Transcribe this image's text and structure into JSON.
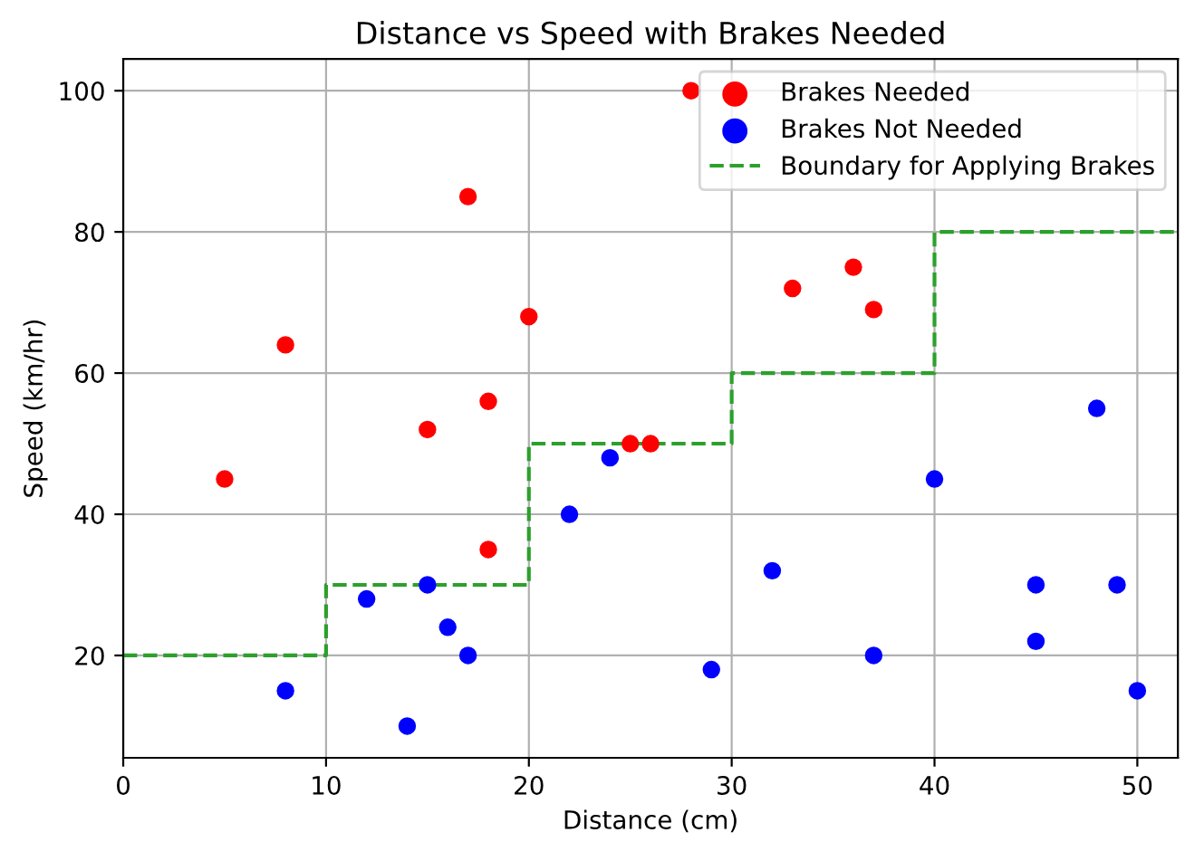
{
  "chart_data": {
    "type": "scatter",
    "title": "Distance vs Speed with Brakes Needed",
    "xlabel": "Distance (cm)",
    "ylabel": "Speed (km/hr)",
    "series": [
      {
        "name": "Brakes Needed",
        "color": "#ff0000",
        "x": [
          5,
          8,
          15,
          17,
          18,
          18,
          20,
          25,
          26,
          28,
          33,
          36,
          37
        ],
        "values": [
          45,
          64,
          52,
          85,
          56,
          35,
          68,
          50,
          50,
          100,
          72,
          75,
          69
        ]
      },
      {
        "name": "Brakes Not Needed",
        "color": "#0000ff",
        "x": [
          8,
          12,
          14,
          15,
          16,
          17,
          22,
          24,
          29,
          32,
          37,
          40,
          45,
          45,
          48,
          49,
          50
        ],
        "values": [
          15,
          28,
          10,
          30,
          24,
          20,
          40,
          48,
          18,
          32,
          20,
          45,
          30,
          22,
          55,
          30,
          15
        ]
      },
      {
        "name": "Boundary for Applying Brakes",
        "type": "step",
        "color": "#2ca02c",
        "line_style": "dashed",
        "marker": "none",
        "x": [
          0,
          10,
          20,
          30,
          40,
          52
        ],
        "values": [
          20,
          30,
          50,
          60,
          80,
          80
        ]
      }
    ],
    "xlim": [
      0,
      52
    ],
    "ylim": [
      5.5,
      104.5
    ],
    "xticks": [
      0,
      10,
      20,
      30,
      40,
      50
    ],
    "yticks": [
      20,
      40,
      60,
      80,
      100
    ],
    "grid": true,
    "legend": "top right",
    "marker": "circle"
  }
}
